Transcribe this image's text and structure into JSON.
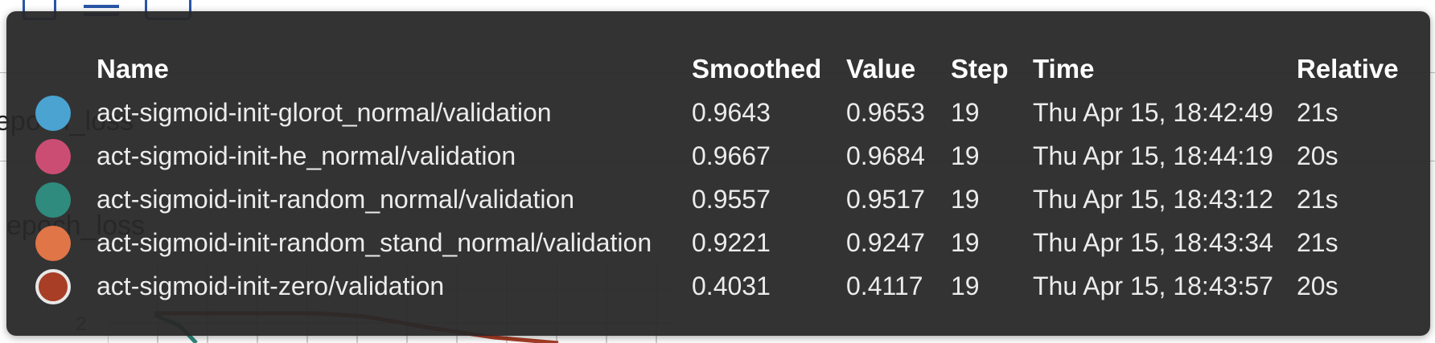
{
  "tooltip": {
    "columns": {
      "name": "Name",
      "smoothed": "Smoothed",
      "value": "Value",
      "step": "Step",
      "time": "Time",
      "relative": "Relative"
    },
    "rows": [
      {
        "name": "act-sigmoid-init-glorot_normal/validation",
        "smoothed": "0.9643",
        "value": "0.9653",
        "step": "19",
        "time": "Thu Apr 15, 18:42:49",
        "relative": "21s",
        "color": "#4aa3d1",
        "selected": false
      },
      {
        "name": "act-sigmoid-init-he_normal/validation",
        "smoothed": "0.9667",
        "value": "0.9684",
        "step": "19",
        "time": "Thu Apr 15, 18:44:19",
        "relative": "20s",
        "color": "#cc4d74",
        "selected": false
      },
      {
        "name": "act-sigmoid-init-random_normal/validation",
        "smoothed": "0.9557",
        "value": "0.9517",
        "step": "19",
        "time": "Thu Apr 15, 18:43:12",
        "relative": "21s",
        "color": "#2e8b7e",
        "selected": false
      },
      {
        "name": "act-sigmoid-init-random_stand_normal/validation",
        "smoothed": "0.9221",
        "value": "0.9247",
        "step": "19",
        "time": "Thu Apr 15, 18:43:34",
        "relative": "21s",
        "color": "#e07548",
        "selected": false
      },
      {
        "name": "act-sigmoid-init-zero/validation",
        "smoothed": "0.4031",
        "value": "0.4117",
        "step": "19",
        "time": "Thu Apr 15, 18:43:57",
        "relative": "20s",
        "color": "#a83e26",
        "selected": true
      }
    ]
  },
  "background": {
    "label_1": "epoch_loss",
    "label_2": "epoch_loss",
    "y_tick": "2"
  },
  "colors": {
    "tooltip_bg": "#282828",
    "accent_icon": "#2a56a8"
  }
}
